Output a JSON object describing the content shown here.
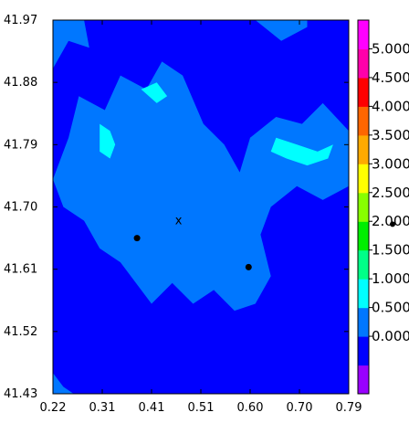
{
  "chart_data": {
    "type": "heatmap",
    "title": "",
    "xlabel": "",
    "ylabel": "",
    "xlim": [
      0.22,
      0.79
    ],
    "ylim": [
      41.43,
      41.97
    ],
    "x_ticks": [
      "0.22",
      "0.31",
      "0.41",
      "0.51",
      "0.60",
      "0.70",
      "0.79"
    ],
    "y_ticks": [
      "41.97",
      "41.88",
      "41.79",
      "41.70",
      "41.61",
      "41.52",
      "41.43"
    ],
    "colorbar": {
      "levels": [
        {
          "value": -0.5,
          "label": "",
          "color": "#9900ff"
        },
        {
          "value": 0.0,
          "label": "0.000",
          "color": "#0000ff"
        },
        {
          "value": 0.5,
          "label": "0.500",
          "color": "#0077ff"
        },
        {
          "value": 1.0,
          "label": "1.000",
          "color": "#00ffff"
        },
        {
          "value": 1.5,
          "label": "1.500",
          "color": "#00ff88"
        },
        {
          "value": 2.0,
          "label": "2.000",
          "color": "#00ee00"
        },
        {
          "value": 2.5,
          "label": "2.500",
          "color": "#88ff00"
        },
        {
          "value": 3.0,
          "label": "3.000",
          "color": "#ffff00"
        },
        {
          "value": 3.5,
          "label": "3.500",
          "color": "#ffaa00"
        },
        {
          "value": 4.0,
          "label": "4.000",
          "color": "#ff6600"
        },
        {
          "value": 4.5,
          "label": "4.500",
          "color": "#ff0000"
        },
        {
          "value": 5.0,
          "label": "5.000",
          "color": "#ff00aa"
        },
        {
          "value": 5.5,
          "label": "",
          "color": "#ff00ff"
        }
      ]
    },
    "markers": [
      {
        "type": "dot",
        "x": 0.382,
        "y": 41.655
      },
      {
        "type": "dot",
        "x": 0.597,
        "y": 41.613
      },
      {
        "type": "x",
        "x": 0.462,
        "y": 41.68,
        "label": "x"
      }
    ],
    "colorbar_marker": {
      "type": "dot",
      "value": 2.2
    },
    "regions": [
      {
        "level": 1,
        "polygon": [
          [
            0.22,
            41.97
          ],
          [
            0.79,
            41.97
          ],
          [
            0.79,
            41.43
          ],
          [
            0.22,
            41.43
          ]
        ]
      },
      {
        "level": 1,
        "polygon": [
          [
            0.22,
            41.62
          ],
          [
            0.27,
            41.58
          ],
          [
            0.31,
            41.52
          ],
          [
            0.33,
            41.47
          ],
          [
            0.35,
            41.43
          ],
          [
            0.22,
            41.43
          ]
        ]
      },
      {
        "level": 2,
        "polygon": [
          [
            0.22,
            41.74
          ],
          [
            0.25,
            41.8
          ],
          [
            0.27,
            41.86
          ],
          [
            0.32,
            41.84
          ],
          [
            0.35,
            41.89
          ],
          [
            0.4,
            41.87
          ],
          [
            0.43,
            41.91
          ],
          [
            0.47,
            41.89
          ],
          [
            0.51,
            41.82
          ],
          [
            0.55,
            41.79
          ],
          [
            0.58,
            41.75
          ],
          [
            0.6,
            41.8
          ],
          [
            0.65,
            41.83
          ],
          [
            0.7,
            41.82
          ],
          [
            0.74,
            41.85
          ],
          [
            0.79,
            41.81
          ],
          [
            0.79,
            41.73
          ],
          [
            0.74,
            41.71
          ],
          [
            0.69,
            41.73
          ],
          [
            0.64,
            41.7
          ],
          [
            0.62,
            41.66
          ],
          [
            0.64,
            41.6
          ],
          [
            0.61,
            41.56
          ],
          [
            0.57,
            41.55
          ],
          [
            0.53,
            41.58
          ],
          [
            0.49,
            41.56
          ],
          [
            0.45,
            41.59
          ],
          [
            0.41,
            41.56
          ],
          [
            0.38,
            41.59
          ],
          [
            0.35,
            41.62
          ],
          [
            0.31,
            41.64
          ],
          [
            0.28,
            41.68
          ],
          [
            0.24,
            41.7
          ]
        ]
      },
      {
        "level": 2,
        "polygon": [
          [
            0.22,
            41.9
          ],
          [
            0.25,
            41.94
          ],
          [
            0.29,
            41.93
          ],
          [
            0.28,
            41.97
          ],
          [
            0.22,
            41.97
          ]
        ]
      },
      {
        "level": 2,
        "polygon": [
          [
            0.61,
            41.97
          ],
          [
            0.66,
            41.94
          ],
          [
            0.71,
            41.96
          ],
          [
            0.71,
            41.97
          ]
        ]
      },
      {
        "level": 2,
        "polygon": [
          [
            0.22,
            41.46
          ],
          [
            0.24,
            41.44
          ],
          [
            0.26,
            41.43
          ],
          [
            0.22,
            41.43
          ]
        ]
      },
      {
        "level": 3,
        "polygon": [
          [
            0.31,
            41.82
          ],
          [
            0.33,
            41.81
          ],
          [
            0.34,
            41.79
          ],
          [
            0.33,
            41.77
          ],
          [
            0.31,
            41.78
          ]
        ]
      },
      {
        "level": 3,
        "polygon": [
          [
            0.65,
            41.8
          ],
          [
            0.69,
            41.79
          ],
          [
            0.73,
            41.78
          ],
          [
            0.76,
            41.79
          ],
          [
            0.75,
            41.77
          ],
          [
            0.71,
            41.76
          ],
          [
            0.67,
            41.77
          ],
          [
            0.64,
            41.78
          ]
        ]
      },
      {
        "level": 3,
        "polygon": [
          [
            0.39,
            41.87
          ],
          [
            0.42,
            41.85
          ],
          [
            0.44,
            41.86
          ],
          [
            0.42,
            41.88
          ]
        ]
      }
    ]
  }
}
